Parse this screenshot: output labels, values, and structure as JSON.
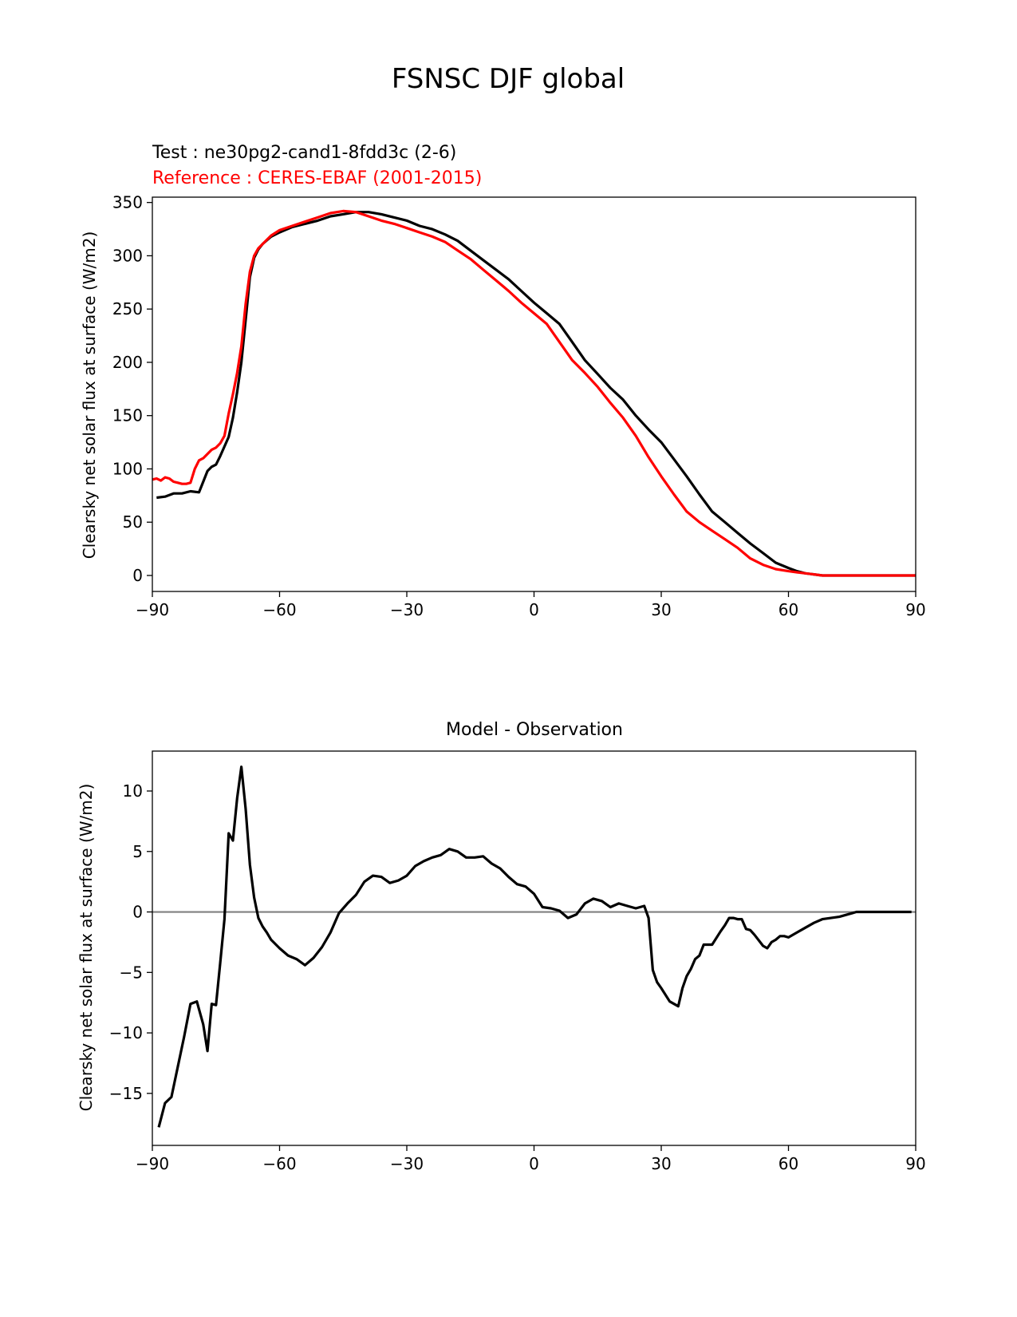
{
  "figure_title": "FSNSC DJF global",
  "chart_data": [
    {
      "type": "line",
      "subtitle_test": "Test : ne30pg2-cand1-8fdd3c (2-6)",
      "subtitle_ref": "Reference : CERES-EBAF (2001-2015)",
      "xlabel": "",
      "ylabel": "Clearsky net solar flux at surface (W/m2)",
      "xlim": [
        -90,
        90
      ],
      "ylim": [
        -15,
        355
      ],
      "xticks": [
        -90,
        -60,
        -30,
        0,
        30,
        60,
        90
      ],
      "yticks": [
        0,
        50,
        100,
        150,
        200,
        250,
        300,
        350
      ],
      "series": [
        {
          "name": "Test : ne30pg2-cand1-8fdd3c (2-6)",
          "color": "#000000",
          "x": [
            -89,
            -87,
            -85,
            -83,
            -81,
            -79,
            -78,
            -77,
            -76,
            -75,
            -74,
            -72,
            -71,
            -70,
            -69,
            -68,
            -67,
            -66,
            -65,
            -64,
            -62,
            -60,
            -57,
            -54,
            -51,
            -48,
            -45,
            -42,
            -39,
            -36,
            -33,
            -30,
            -27,
            -24,
            -21,
            -18,
            -15,
            -12,
            -9,
            -6,
            -3,
            0,
            3,
            6,
            9,
            12,
            15,
            18,
            21,
            24,
            27,
            30,
            33,
            36,
            39,
            42,
            45,
            48,
            51,
            54,
            57,
            60,
            62,
            64,
            66,
            68,
            70,
            75,
            80,
            85,
            90
          ],
          "y": [
            73,
            74,
            77,
            77,
            79,
            78,
            88,
            98,
            102,
            104,
            112,
            130,
            148,
            172,
            200,
            240,
            280,
            298,
            306,
            311,
            318,
            322,
            327,
            330,
            333,
            337,
            339,
            341,
            341,
            339,
            336,
            333,
            328,
            325,
            320,
            314,
            305,
            296,
            287,
            278,
            267,
            256,
            246,
            236,
            219,
            202,
            189,
            176,
            165,
            150,
            137,
            125,
            109,
            93,
            76,
            60,
            50,
            40,
            30,
            21,
            12,
            7,
            4,
            2,
            1,
            0,
            0,
            0,
            0,
            0,
            0
          ]
        },
        {
          "name": "Reference : CERES-EBAF (2001-2015)",
          "color": "#ff0000",
          "x": [
            -90,
            -89,
            -88,
            -87,
            -86,
            -85,
            -84,
            -83,
            -82,
            -81,
            -80,
            -79,
            -78,
            -77,
            -76,
            -75,
            -74,
            -73,
            -72,
            -71,
            -70,
            -69,
            -68,
            -67,
            -66,
            -65,
            -64,
            -62,
            -60,
            -57,
            -54,
            -51,
            -48,
            -45,
            -42,
            -39,
            -36,
            -33,
            -30,
            -27,
            -24,
            -21,
            -18,
            -15,
            -12,
            -9,
            -6,
            -3,
            0,
            3,
            6,
            9,
            12,
            15,
            18,
            21,
            24,
            27,
            30,
            33,
            36,
            39,
            42,
            45,
            48,
            51,
            54,
            57,
            60,
            62,
            64,
            66,
            68,
            70,
            75,
            80,
            85,
            90
          ],
          "y": [
            90,
            91,
            89,
            92,
            91,
            88,
            87,
            86,
            86,
            87,
            100,
            108,
            110,
            114,
            118,
            120,
            124,
            131,
            152,
            170,
            190,
            215,
            255,
            285,
            300,
            307,
            311,
            319,
            324,
            328,
            332,
            336,
            340,
            342,
            341,
            337,
            333,
            330,
            326,
            322,
            318,
            313,
            305,
            297,
            287,
            277,
            267,
            256,
            246,
            236,
            219,
            202,
            190,
            177,
            162,
            148,
            131,
            111,
            93,
            76,
            60,
            50,
            42,
            34,
            26,
            16,
            10,
            6,
            4,
            3,
            2,
            1,
            0,
            0,
            0,
            0,
            0,
            0
          ]
        }
      ]
    },
    {
      "type": "line",
      "title": "Model - Observation",
      "xlabel": "",
      "ylabel": "Clearsky net solar flux at surface (W/m2)",
      "xlim": [
        -90,
        90
      ],
      "ylim": [
        -19.3,
        13.3
      ],
      "xticks": [
        -90,
        -60,
        -30,
        0,
        30,
        60,
        90
      ],
      "yticks": [
        -15,
        -10,
        -5,
        0,
        5,
        10
      ],
      "zero_line_color": "#808080",
      "series": [
        {
          "name": "",
          "color": "#000000",
          "x": [
            -88.5,
            -87,
            -85.5,
            -84,
            -82.5,
            -81,
            -79.5,
            -78,
            -77,
            -76,
            -75,
            -74,
            -73,
            -72,
            -71,
            -70,
            -69,
            -68,
            -67,
            -66,
            -65,
            -64,
            -63,
            -62,
            -60,
            -58,
            -56,
            -54,
            -52,
            -50,
            -48,
            -46,
            -44,
            -42,
            -40,
            -38,
            -36,
            -34,
            -32,
            -30,
            -28,
            -26,
            -24,
            -22,
            -20,
            -18,
            -16,
            -14,
            -12,
            -10,
            -8,
            -6,
            -4,
            -2,
            0,
            2,
            4,
            6,
            8,
            10,
            12,
            14,
            16,
            18,
            20,
            22,
            24,
            26,
            27,
            28,
            29,
            30,
            32,
            34,
            35,
            36,
            37,
            38,
            39,
            40,
            42,
            44,
            45,
            46,
            47,
            48,
            49,
            50,
            51,
            52,
            54,
            55,
            56,
            57,
            58,
            59,
            60,
            62,
            64,
            66,
            68,
            70,
            72,
            74,
            75,
            76,
            78,
            80,
            84,
            89
          ],
          "y": [
            -17.8,
            -15.8,
            -15.3,
            -12.8,
            -10.3,
            -7.6,
            -7.4,
            -9.3,
            -11.5,
            -7.6,
            -7.7,
            -4.2,
            -0.6,
            6.5,
            5.9,
            9.4,
            12.0,
            8.5,
            3.9,
            1.2,
            -0.5,
            -1.2,
            -1.7,
            -2.3,
            -3.0,
            -3.6,
            -3.9,
            -4.4,
            -3.8,
            -2.9,
            -1.7,
            -0.1,
            0.7,
            1.4,
            2.5,
            3.0,
            2.9,
            2.4,
            2.6,
            3.0,
            3.8,
            4.2,
            4.5,
            4.7,
            5.2,
            5.0,
            4.5,
            4.5,
            4.6,
            4.0,
            3.6,
            2.9,
            2.3,
            2.1,
            1.5,
            0.4,
            0.3,
            0.1,
            -0.5,
            -0.2,
            0.7,
            1.1,
            0.9,
            0.4,
            0.7,
            0.5,
            0.3,
            0.5,
            -0.5,
            -4.8,
            -5.8,
            -6.3,
            -7.4,
            -7.8,
            -6.3,
            -5.3,
            -4.7,
            -3.9,
            -3.6,
            -2.7,
            -2.7,
            -1.6,
            -1.1,
            -0.5,
            -0.5,
            -0.6,
            -0.6,
            -1.4,
            -1.5,
            -1.9,
            -2.8,
            -3.0,
            -2.5,
            -2.3,
            -2.0,
            -2.0,
            -2.1,
            -1.7,
            -1.3,
            -0.9,
            -0.6,
            -0.5,
            -0.4,
            -0.2,
            -0.1,
            0.0,
            0.0,
            0.0,
            0.0,
            0.0
          ]
        }
      ]
    }
  ]
}
